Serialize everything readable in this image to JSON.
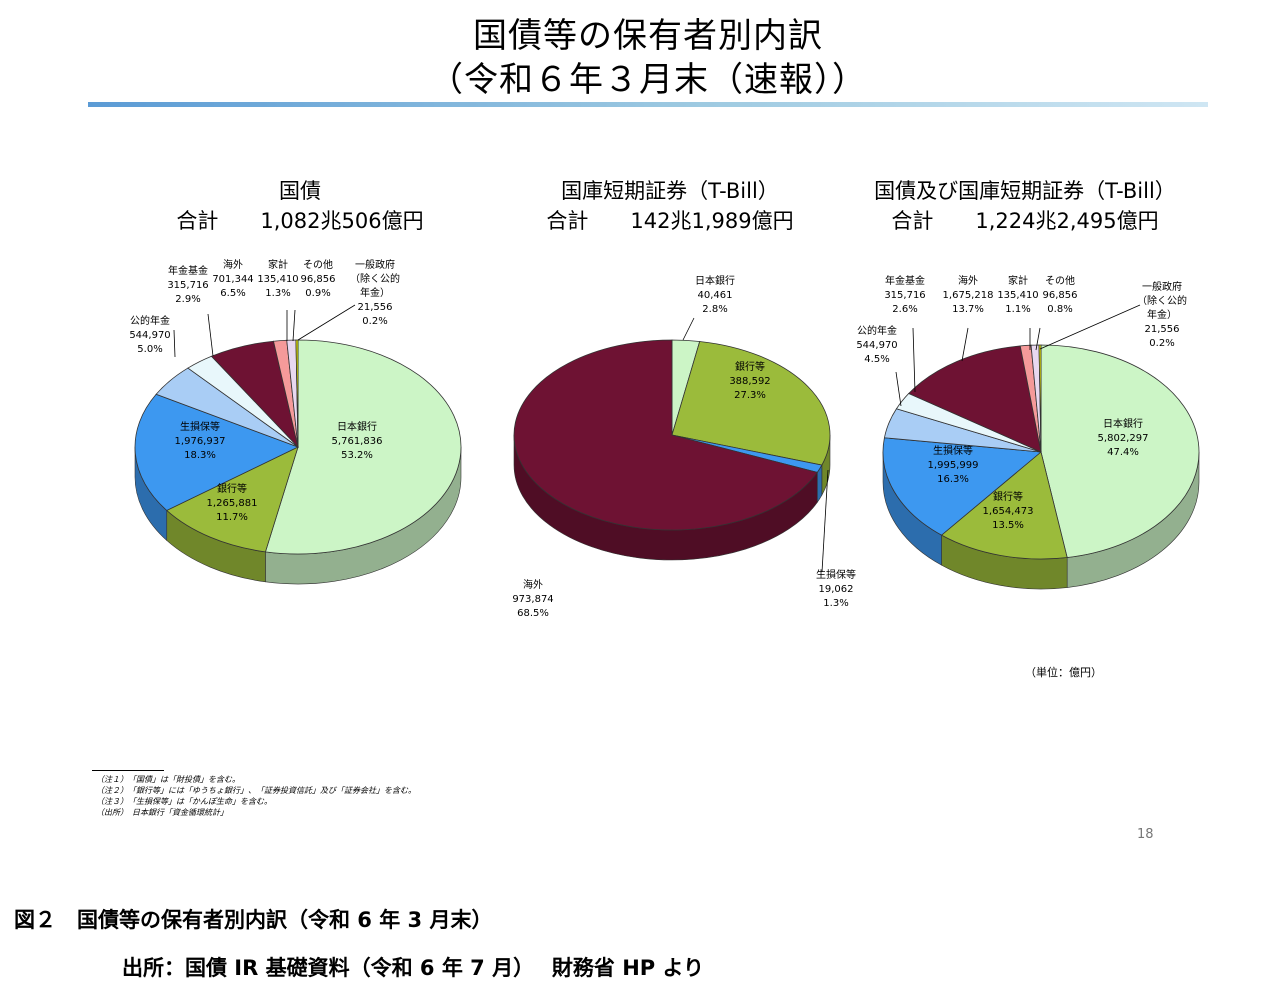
{
  "title": {
    "line1": "国債等の保有者別内訳",
    "line2": "（令和６年３月末（速報））"
  },
  "chart_data": [
    {
      "type": "pie",
      "title": "国債",
      "subtitle": "合計　　1,082兆506億円",
      "slices": [
        {
          "name": "日本銀行",
          "value_text": "5,761,836",
          "value": 5761836,
          "percent": 53.2,
          "percent_text": "53.2%",
          "color": "#ccf5c6"
        },
        {
          "name": "銀行等",
          "value_text": "1,265,881",
          "value": 1265881,
          "percent": 11.7,
          "percent_text": "11.7%",
          "color": "#9bbb3b"
        },
        {
          "name": "生損保等",
          "value_text": "1,976,937",
          "value": 1976937,
          "percent": 18.3,
          "percent_text": "18.3%",
          "color": "#3d98f0"
        },
        {
          "name": "公的年金",
          "value_text": "544,970",
          "value": 544970,
          "percent": 5.0,
          "percent_text": "5.0%",
          "color": "#a9cdf5"
        },
        {
          "name": "年金基金",
          "value_text": "315,716",
          "value": 315716,
          "percent": 2.9,
          "percent_text": "2.9%",
          "color": "#e8f7fb"
        },
        {
          "name": "海外",
          "value_text": "701,344",
          "value": 701344,
          "percent": 6.5,
          "percent_text": "6.5%",
          "color": "#6e1233"
        },
        {
          "name": "家計",
          "value_text": "135,410",
          "value": 135410,
          "percent": 1.3,
          "percent_text": "1.3%",
          "color": "#f59a9a"
        },
        {
          "name": "その他",
          "value_text": "96,856",
          "value": 96856,
          "percent": 0.9,
          "percent_text": "0.9%",
          "color": "#e8d8f0"
        },
        {
          "name": "一般政府（除く公的年金）",
          "value_text": "21,556",
          "value": 21556,
          "percent": 0.2,
          "percent_text": "0.2%",
          "color": "#f5f500"
        }
      ]
    },
    {
      "type": "pie",
      "title": "国庫短期証券（T-Bill）",
      "subtitle": "合計　　142兆1,989億円",
      "slices": [
        {
          "name": "日本銀行",
          "value_text": "40,461",
          "value": 40461,
          "percent": 2.8,
          "percent_text": "2.8%",
          "color": "#ccf5c6"
        },
        {
          "name": "銀行等",
          "value_text": "388,592",
          "value": 388592,
          "percent": 27.3,
          "percent_text": "27.3%",
          "color": "#9bbb3b"
        },
        {
          "name": "生損保等",
          "value_text": "19,062",
          "value": 19062,
          "percent": 1.3,
          "percent_text": "1.3%",
          "color": "#3d98f0"
        },
        {
          "name": "海外",
          "value_text": "973,874",
          "value": 973874,
          "percent": 68.5,
          "percent_text": "68.5%",
          "color": "#6e1233"
        }
      ]
    },
    {
      "type": "pie",
      "title": "国債及び国庫短期証券（T-Bill）",
      "subtitle": "合計　　1,224兆2,495億円",
      "slices": [
        {
          "name": "日本銀行",
          "value_text": "5,802,297",
          "value": 5802297,
          "percent": 47.4,
          "percent_text": "47.4%",
          "color": "#ccf5c6"
        },
        {
          "name": "銀行等",
          "value_text": "1,654,473",
          "value": 1654473,
          "percent": 13.5,
          "percent_text": "13.5%",
          "color": "#9bbb3b"
        },
        {
          "name": "生損保等",
          "value_text": "1,995,999",
          "value": 1995999,
          "percent": 16.3,
          "percent_text": "16.3%",
          "color": "#3d98f0"
        },
        {
          "name": "公的年金",
          "value_text": "544,970",
          "value": 544970,
          "percent": 4.5,
          "percent_text": "4.5%",
          "color": "#a9cdf5"
        },
        {
          "name": "年金基金",
          "value_text": "315,716",
          "value": 315716,
          "percent": 2.6,
          "percent_text": "2.6%",
          "color": "#e8f7fb"
        },
        {
          "name": "海外",
          "value_text": "1,675,218",
          "value": 1675218,
          "percent": 13.7,
          "percent_text": "13.7%",
          "color": "#6e1233"
        },
        {
          "name": "家計",
          "value_text": "135,410",
          "value": 135410,
          "percent": 1.1,
          "percent_text": "1.1%",
          "color": "#f59a9a"
        },
        {
          "name": "その他",
          "value_text": "96,856",
          "value": 96856,
          "percent": 0.8,
          "percent_text": "0.8%",
          "color": "#e8d8f0"
        },
        {
          "name": "一般政府（除く公的年金）",
          "value_text": "21,556",
          "value": 21556,
          "percent": 0.2,
          "percent_text": "0.2%",
          "color": "#f5f500"
        }
      ]
    }
  ],
  "unit_note": "（単位：億円）",
  "notes": [
    "（注１）　「国債」は「財投債」を含む。",
    "（注２）　「銀行等」には「ゆうちょ銀行」、「証券投資信託」及び「証券会社」を含む。",
    "（注３）　「生損保等」は「かんぽ生命」を含む。",
    "（出所）　日本銀行「資金循環統計」"
  ],
  "page_number": "18",
  "caption": "図２　国債等の保有者別内訳（令和 6 年 3 月末）",
  "source": "出所：国債 IR 基礎資料（令和 6 年 7 月）　 財務省 HP より"
}
